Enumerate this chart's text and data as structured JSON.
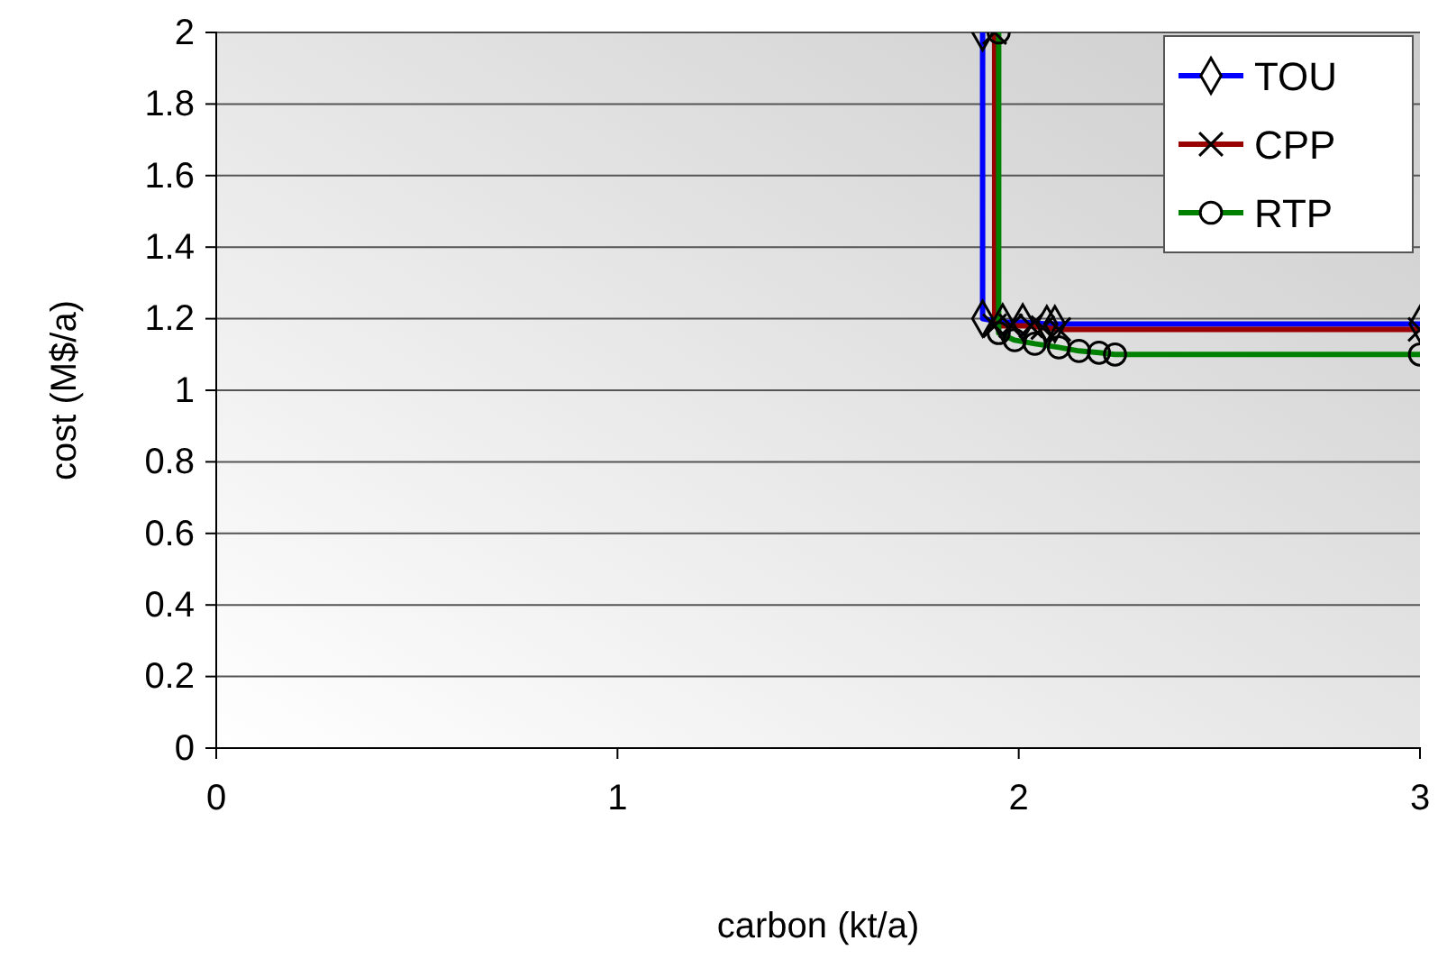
{
  "chart_data": {
    "type": "line",
    "xlabel": "carbon (kt/a)",
    "ylabel": "cost (M$/a)",
    "xlim": [
      0,
      3
    ],
    "xticks": [
      0,
      1,
      2,
      3
    ],
    "ylim": [
      0,
      2
    ],
    "yticks": [
      0,
      0.2,
      0.4,
      0.6,
      0.8,
      1,
      1.2,
      1.4,
      1.6,
      1.8,
      2
    ],
    "grid": "y",
    "legend": "top right",
    "series": [
      {
        "name": "TOU",
        "color": "#0000ff",
        "marker": "diamond",
        "x": [
          1.91,
          1.91,
          1.96,
          2.01,
          2.07,
          2.09,
          3
        ],
        "values": [
          2,
          1.2,
          1.19,
          1.19,
          1.185,
          1.185,
          1.185
        ]
      },
      {
        "name": "CPP",
        "color": "#990000",
        "marker": "cross",
        "x": [
          1.94,
          1.94,
          1.98,
          2.03,
          2.06,
          2.1,
          3
        ],
        "values": [
          2,
          1.18,
          1.18,
          1.18,
          1.175,
          1.17,
          1.17
        ]
      },
      {
        "name": "RTP",
        "color": "#008000",
        "marker": "circle",
        "x": [
          1.95,
          1.95,
          1.99,
          2.04,
          2.1,
          2.15,
          2.2,
          2.24,
          3
        ],
        "values": [
          2,
          1.16,
          1.14,
          1.13,
          1.12,
          1.11,
          1.105,
          1.1,
          1.1
        ]
      }
    ]
  }
}
